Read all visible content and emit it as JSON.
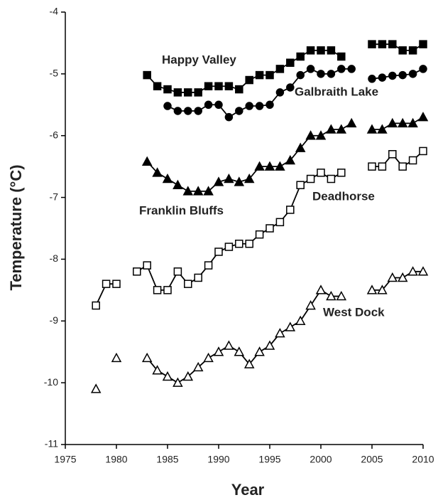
{
  "chart_data": {
    "type": "line",
    "xlabel": "Year",
    "ylabel": "Temperature (°C)",
    "x": [
      1978,
      1979,
      1980,
      1981,
      1982,
      1983,
      1984,
      1985,
      1986,
      1987,
      1988,
      1989,
      1990,
      1991,
      1992,
      1993,
      1994,
      1995,
      1996,
      1997,
      1998,
      1999,
      2000,
      2001,
      2002,
      2003,
      2004,
      2005,
      2006,
      2007,
      2008,
      2009,
      2010
    ],
    "xlim": [
      1975,
      2010
    ],
    "xticks": [
      1975,
      1980,
      1985,
      1990,
      1995,
      2000,
      2005,
      2010
    ],
    "ylim": [
      -11,
      -4
    ],
    "yticks": [
      -11,
      -10,
      -9,
      -8,
      -7,
      -6,
      -5,
      -4
    ],
    "series": [
      {
        "name": "Happy Valley",
        "color": "#000000",
        "marker": "square",
        "filled": true,
        "values": [
          null,
          null,
          null,
          null,
          null,
          -5.02,
          -5.2,
          -5.25,
          -5.3,
          -5.3,
          -5.3,
          -5.2,
          -5.2,
          -5.2,
          -5.25,
          -5.1,
          -5.02,
          -5.02,
          -4.92,
          -4.82,
          -4.72,
          -4.62,
          -4.62,
          -4.62,
          -4.72,
          null,
          null,
          -4.52,
          -4.52,
          -4.52,
          -4.62,
          -4.62,
          -4.52
        ]
      },
      {
        "name": "Galbraith Lake",
        "color": "#000000",
        "marker": "circle",
        "filled": true,
        "values": [
          null,
          null,
          null,
          null,
          null,
          null,
          null,
          -5.52,
          -5.6,
          -5.6,
          -5.6,
          -5.5,
          -5.5,
          -5.7,
          -5.6,
          -5.52,
          -5.52,
          -5.5,
          -5.3,
          -5.22,
          -5.02,
          -4.92,
          -5.0,
          -5.0,
          -4.92,
          -4.92,
          null,
          -5.08,
          -5.06,
          -5.03,
          -5.02,
          -5.0,
          -4.92
        ]
      },
      {
        "name": "Franklin Bluffs",
        "color": "#000000",
        "marker": "triangle",
        "filled": true,
        "values": [
          null,
          null,
          null,
          null,
          null,
          -6.42,
          -6.6,
          -6.7,
          -6.8,
          -6.9,
          -6.9,
          -6.9,
          -6.75,
          -6.7,
          -6.75,
          -6.7,
          -6.5,
          -6.5,
          -6.5,
          -6.4,
          -6.2,
          -6.0,
          -6.0,
          -5.9,
          -5.9,
          -5.8,
          null,
          -5.9,
          -5.9,
          -5.8,
          -5.8,
          -5.8,
          -5.7
        ]
      },
      {
        "name": "Deadhorse",
        "color": "#000000",
        "marker": "square",
        "filled": false,
        "values": [
          -8.75,
          -8.4,
          -8.4,
          null,
          -8.2,
          -8.1,
          -8.5,
          -8.5,
          -8.2,
          -8.4,
          -8.3,
          -8.1,
          -7.88,
          -7.8,
          -7.75,
          -7.75,
          -7.6,
          -7.5,
          -7.4,
          -7.2,
          -6.8,
          -6.7,
          -6.6,
          -6.7,
          -6.6,
          null,
          null,
          -6.5,
          -6.5,
          -6.3,
          -6.5,
          -6.4,
          -6.25
        ]
      },
      {
        "name": "West Dock",
        "color": "#000000",
        "marker": "triangle",
        "filled": false,
        "values": [
          -10.1,
          null,
          -9.6,
          null,
          null,
          -9.6,
          -9.8,
          -9.9,
          -10.0,
          -9.9,
          -9.75,
          -9.6,
          -9.5,
          -9.4,
          -9.5,
          -9.7,
          -9.5,
          -9.4,
          -9.2,
          -9.1,
          -9.0,
          -8.75,
          -8.5,
          -8.6,
          -8.6,
          null,
          null,
          -8.5,
          -8.5,
          -8.3,
          -8.3,
          -8.2,
          -8.2
        ]
      }
    ]
  }
}
